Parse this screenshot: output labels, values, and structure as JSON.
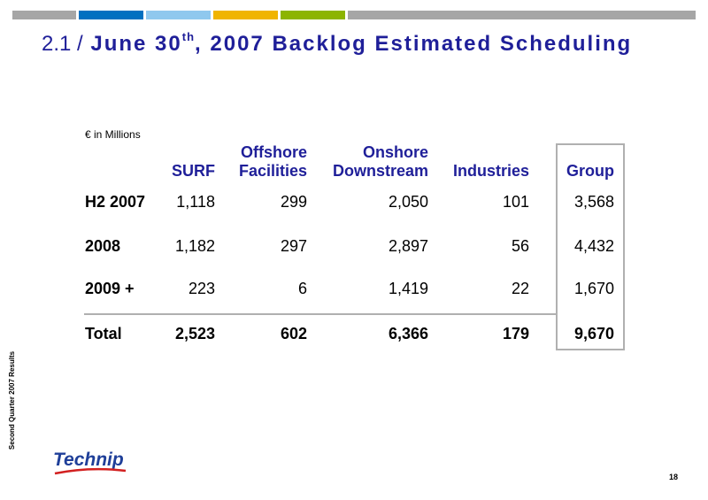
{
  "title": {
    "number": "2.1 /",
    "text_before_sup": "June 30",
    "sup": "th",
    "text_after_sup": ", 2007 Backlog Estimated Scheduling"
  },
  "unit_label": "€ in Millions",
  "table": {
    "headers": [
      {
        "line1": "",
        "line2": "SURF"
      },
      {
        "line1": "Offshore",
        "line2": "Facilities"
      },
      {
        "line1": "Onshore",
        "line2": "Downstream"
      },
      {
        "line1": "",
        "line2": "Industries"
      },
      {
        "line1": "",
        "line2": "Group"
      }
    ],
    "rows": [
      {
        "label": "H2 2007",
        "values": [
          "1,118",
          "299",
          "2,050",
          "101",
          "3,568"
        ]
      },
      {
        "label": "2008",
        "values": [
          "1,182",
          "297",
          "2,897",
          "56",
          "4,432"
        ]
      },
      {
        "label": "2009 +",
        "values": [
          "223",
          "6",
          "1,419",
          "22",
          "1,670"
        ]
      },
      {
        "label": "Total",
        "values": [
          "2,523",
          "602",
          "6,366",
          "179",
          "9,670"
        ]
      }
    ]
  },
  "footer": {
    "side_text": "Second Quarter 2007 Results",
    "page_number": "18",
    "logo_text": "Technip"
  },
  "colors": {
    "title": "#1f1f99",
    "bar": [
      "#a6a6a6",
      "#0070c0",
      "#8fc8ee",
      "#f0b400",
      "#8cb400",
      "#a6a6a6"
    ]
  }
}
